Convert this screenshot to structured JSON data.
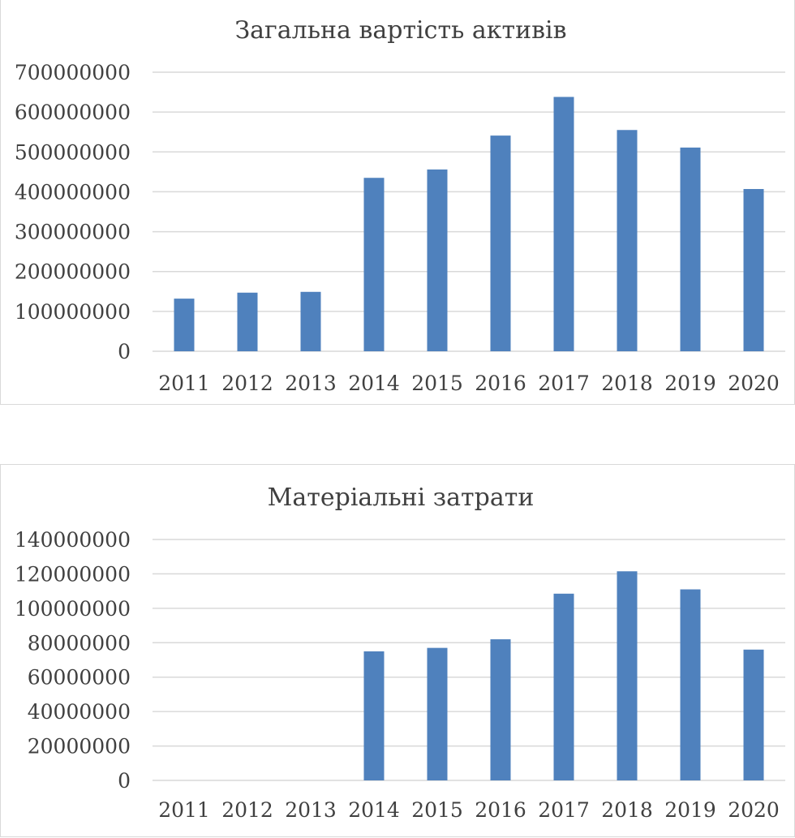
{
  "chart_data": [
    {
      "type": "bar",
      "title": "Загальна вартість активів",
      "categories": [
        "2011",
        "2012",
        "2013",
        "2014",
        "2015",
        "2016",
        "2017",
        "2018",
        "2019",
        "2020"
      ],
      "values": [
        132000000,
        147000000,
        149000000,
        435000000,
        456000000,
        541000000,
        638000000,
        555000000,
        511000000,
        407000000
      ],
      "y_ticks": [
        "0",
        "100000000",
        "200000000",
        "300000000",
        "400000000",
        "500000000",
        "600000000",
        "700000000"
      ],
      "ylim": [
        0,
        700000000
      ],
      "grid": true,
      "bar_color": "#4f81bd"
    },
    {
      "type": "bar",
      "title": "Матеріальні затрати",
      "categories": [
        "2011",
        "2012",
        "2013",
        "2014",
        "2015",
        "2016",
        "2017",
        "2018",
        "2019",
        "2020"
      ],
      "values": [
        0,
        0,
        0,
        75000000,
        77000000,
        82000000,
        108500000,
        121500000,
        111000000,
        76000000
      ],
      "y_ticks": [
        "0",
        "20000000",
        "40000000",
        "60000000",
        "80000000",
        "100000000",
        "120000000",
        "140000000"
      ],
      "ylim": [
        0,
        140000000
      ],
      "grid": true,
      "bar_color": "#4f81bd"
    }
  ]
}
